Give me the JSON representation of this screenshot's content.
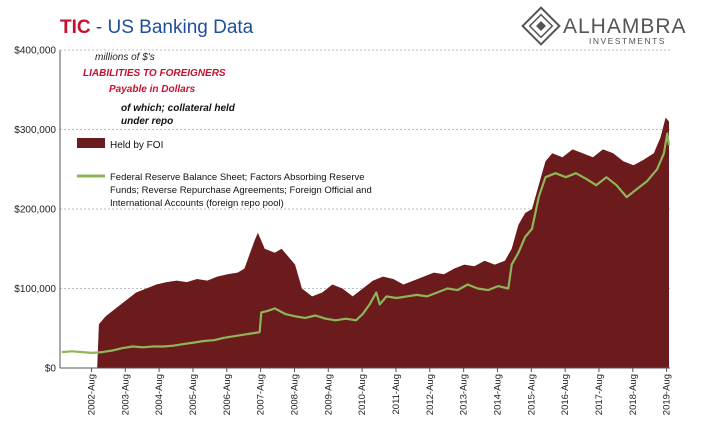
{
  "header": {
    "title_prefix": "TIC",
    "title_rest": " - US Banking Data",
    "logo_name": "ALHAMBRA",
    "logo_sub": "INVESTMENTS"
  },
  "colors": {
    "title_red": "#c8102e",
    "title_blue": "#1f4e9c",
    "area_fill": "#6b1b1b",
    "line_green": "#8fb55a",
    "annotation_red": "#c8102e",
    "grid": "#bfbfbf",
    "logo": "#555555"
  },
  "annotations": {
    "units": "millions of $'s",
    "liabilities": "LIABILITIES TO FOREIGNERS",
    "payable": "Payable in Dollars",
    "collateral_1": "of which; collateral held",
    "collateral_2": "under repo"
  },
  "legend": {
    "foi_label": "Held by FOI",
    "fed_lines": [
      "Federal Reserve Balance Sheet; Factors Absorbing Reserve",
      "Funds; Reverse Repurchase Agreements; Foreign Official and",
      "International Accounts (foreign repo pool)"
    ]
  },
  "chart_data": {
    "type": "area",
    "ylim": [
      0,
      400000
    ],
    "y_ticks": [
      0,
      100000,
      200000,
      300000,
      400000
    ],
    "y_tick_labels": [
      "$0",
      "$100,000",
      "$200,000",
      "$300,000",
      "$400,000"
    ],
    "xlim": [
      2001.65,
      2019.68
    ],
    "x_ticks": [
      2002.58,
      2003.58,
      2004.58,
      2005.58,
      2006.58,
      2007.58,
      2008.58,
      2009.58,
      2010.58,
      2011.58,
      2012.58,
      2013.58,
      2014.58,
      2015.58,
      2016.58,
      2017.58,
      2018.58,
      2019.58
    ],
    "x_tick_labels": [
      "2002-Aug",
      "2003-Aug",
      "2004-Aug",
      "2005-Aug",
      "2006-Aug",
      "2007-Aug",
      "2008-Aug",
      "2009-Aug",
      "2010-Aug",
      "2011-Aug",
      "2012-Aug",
      "2013-Aug",
      "2014-Aug",
      "2015-Aug",
      "2016-Aug",
      "2017-Aug",
      "2018-Aug",
      "2019-Aug"
    ],
    "grid": true,
    "series": [
      {
        "name": "Held by FOI",
        "style": "area",
        "points": [
          [
            2002.75,
            0
          ],
          [
            2002.8,
            55000
          ],
          [
            2003.0,
            65000
          ],
          [
            2003.3,
            75000
          ],
          [
            2003.6,
            85000
          ],
          [
            2003.9,
            95000
          ],
          [
            2004.2,
            100000
          ],
          [
            2004.5,
            105000
          ],
          [
            2004.8,
            108000
          ],
          [
            2005.1,
            110000
          ],
          [
            2005.4,
            108000
          ],
          [
            2005.7,
            112000
          ],
          [
            2006.0,
            110000
          ],
          [
            2006.3,
            115000
          ],
          [
            2006.6,
            118000
          ],
          [
            2006.9,
            120000
          ],
          [
            2007.1,
            125000
          ],
          [
            2007.4,
            160000
          ],
          [
            2007.5,
            170000
          ],
          [
            2007.7,
            150000
          ],
          [
            2008.0,
            145000
          ],
          [
            2008.2,
            150000
          ],
          [
            2008.4,
            140000
          ],
          [
            2008.6,
            130000
          ],
          [
            2008.8,
            100000
          ],
          [
            2009.1,
            90000
          ],
          [
            2009.4,
            95000
          ],
          [
            2009.7,
            105000
          ],
          [
            2010.0,
            100000
          ],
          [
            2010.3,
            90000
          ],
          [
            2010.6,
            100000
          ],
          [
            2010.9,
            110000
          ],
          [
            2011.2,
            115000
          ],
          [
            2011.5,
            112000
          ],
          [
            2011.8,
            105000
          ],
          [
            2012.1,
            110000
          ],
          [
            2012.4,
            115000
          ],
          [
            2012.7,
            120000
          ],
          [
            2013.0,
            118000
          ],
          [
            2013.3,
            125000
          ],
          [
            2013.6,
            130000
          ],
          [
            2013.9,
            128000
          ],
          [
            2014.2,
            135000
          ],
          [
            2014.5,
            130000
          ],
          [
            2014.8,
            135000
          ],
          [
            2015.0,
            150000
          ],
          [
            2015.2,
            180000
          ],
          [
            2015.4,
            195000
          ],
          [
            2015.6,
            200000
          ],
          [
            2015.8,
            230000
          ],
          [
            2016.0,
            260000
          ],
          [
            2016.2,
            270000
          ],
          [
            2016.5,
            265000
          ],
          [
            2016.8,
            275000
          ],
          [
            2017.1,
            270000
          ],
          [
            2017.4,
            265000
          ],
          [
            2017.7,
            275000
          ],
          [
            2018.0,
            270000
          ],
          [
            2018.3,
            260000
          ],
          [
            2018.6,
            255000
          ],
          [
            2018.9,
            262000
          ],
          [
            2019.2,
            270000
          ],
          [
            2019.4,
            290000
          ],
          [
            2019.55,
            315000
          ],
          [
            2019.65,
            310000
          ],
          [
            2019.65,
            0
          ]
        ]
      },
      {
        "name": "Federal Reserve Balance Sheet; Factors Absorbing Reserve Funds; Reverse Repurchase Agreements; Foreign Official and International Accounts (foreign repo pool)",
        "style": "line",
        "points": [
          [
            2001.7,
            20000
          ],
          [
            2002.0,
            21000
          ],
          [
            2002.3,
            20000
          ],
          [
            2002.6,
            19000
          ],
          [
            2002.9,
            20000
          ],
          [
            2003.2,
            22000
          ],
          [
            2003.5,
            25000
          ],
          [
            2003.8,
            27000
          ],
          [
            2004.1,
            26000
          ],
          [
            2004.4,
            27000
          ],
          [
            2004.7,
            27000
          ],
          [
            2005.0,
            28000
          ],
          [
            2005.3,
            30000
          ],
          [
            2005.6,
            32000
          ],
          [
            2005.9,
            34000
          ],
          [
            2006.2,
            35000
          ],
          [
            2006.5,
            38000
          ],
          [
            2006.8,
            40000
          ],
          [
            2007.1,
            42000
          ],
          [
            2007.4,
            44000
          ],
          [
            2007.55,
            45000
          ],
          [
            2007.6,
            70000
          ],
          [
            2007.8,
            72000
          ],
          [
            2008.0,
            75000
          ],
          [
            2008.3,
            68000
          ],
          [
            2008.6,
            65000
          ],
          [
            2008.9,
            63000
          ],
          [
            2009.2,
            66000
          ],
          [
            2009.5,
            62000
          ],
          [
            2009.8,
            60000
          ],
          [
            2010.1,
            62000
          ],
          [
            2010.4,
            60000
          ],
          [
            2010.6,
            68000
          ],
          [
            2010.8,
            80000
          ],
          [
            2011.0,
            95000
          ],
          [
            2011.1,
            80000
          ],
          [
            2011.3,
            90000
          ],
          [
            2011.6,
            88000
          ],
          [
            2011.9,
            90000
          ],
          [
            2012.2,
            92000
          ],
          [
            2012.5,
            90000
          ],
          [
            2012.8,
            95000
          ],
          [
            2013.1,
            100000
          ],
          [
            2013.4,
            98000
          ],
          [
            2013.7,
            105000
          ],
          [
            2014.0,
            100000
          ],
          [
            2014.3,
            98000
          ],
          [
            2014.6,
            103000
          ],
          [
            2014.9,
            100000
          ],
          [
            2015.0,
            130000
          ],
          [
            2015.2,
            145000
          ],
          [
            2015.4,
            165000
          ],
          [
            2015.6,
            175000
          ],
          [
            2015.8,
            215000
          ],
          [
            2016.0,
            240000
          ],
          [
            2016.3,
            245000
          ],
          [
            2016.6,
            240000
          ],
          [
            2016.9,
            245000
          ],
          [
            2017.2,
            238000
          ],
          [
            2017.5,
            230000
          ],
          [
            2017.8,
            240000
          ],
          [
            2018.1,
            230000
          ],
          [
            2018.4,
            215000
          ],
          [
            2018.7,
            225000
          ],
          [
            2019.0,
            235000
          ],
          [
            2019.3,
            250000
          ],
          [
            2019.5,
            270000
          ],
          [
            2019.6,
            295000
          ],
          [
            2019.65,
            280000
          ]
        ]
      }
    ]
  }
}
